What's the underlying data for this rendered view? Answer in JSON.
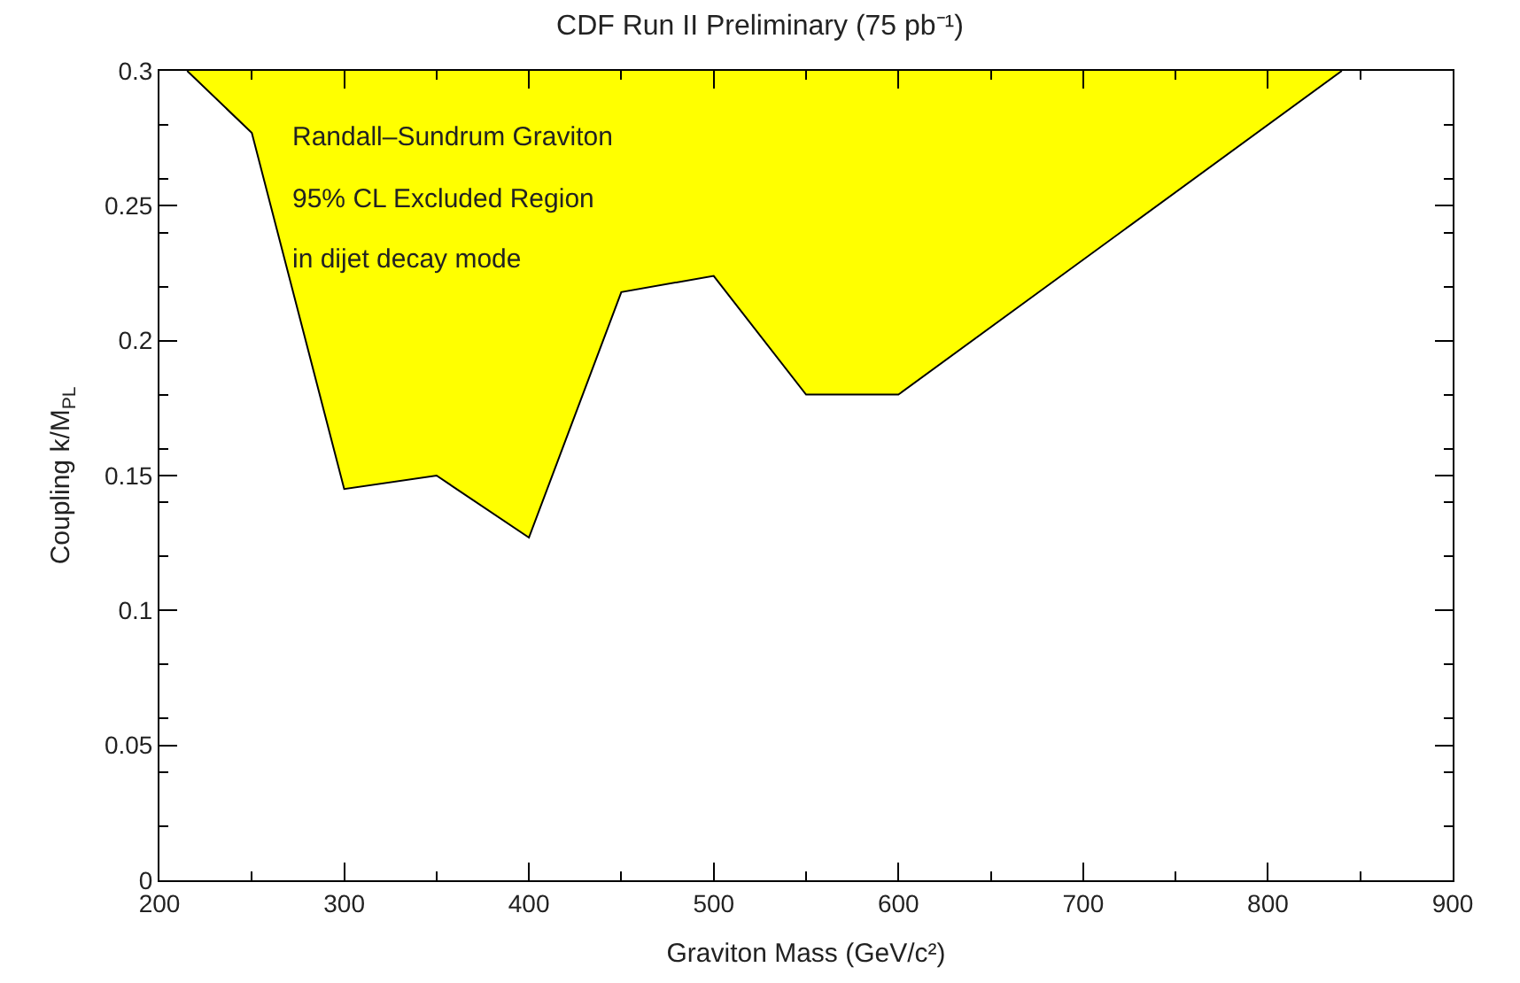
{
  "chart_data": {
    "type": "area",
    "title": "CDF Run II Preliminary (75 pb⁻¹)",
    "xlabel": "Graviton Mass (GeV/c²)",
    "ylabel": "Coupling k/M$_{PL}$",
    "annotations": [
      "Randall–Sundrum Graviton",
      "95% CL Excluded Region",
      "in dijet decay mode"
    ],
    "x": [
      215,
      250,
      300,
      350,
      400,
      450,
      500,
      550,
      600,
      840
    ],
    "series": [
      {
        "color": "#ffff00",
        "values": [
          0.3,
          0.277,
          0.145,
          0.15,
          0.127,
          0.218,
          0.224,
          0.18,
          0.18,
          0.3
        ]
      }
    ],
    "xlim": [
      200,
      900
    ],
    "xticks": [
      200,
      300,
      400,
      500,
      600,
      700,
      800,
      900
    ],
    "ylim": [
      0,
      0.3
    ],
    "yticks": [
      0,
      0.05,
      0.1,
      0.15,
      0.2,
      0.25,
      0.3
    ]
  }
}
